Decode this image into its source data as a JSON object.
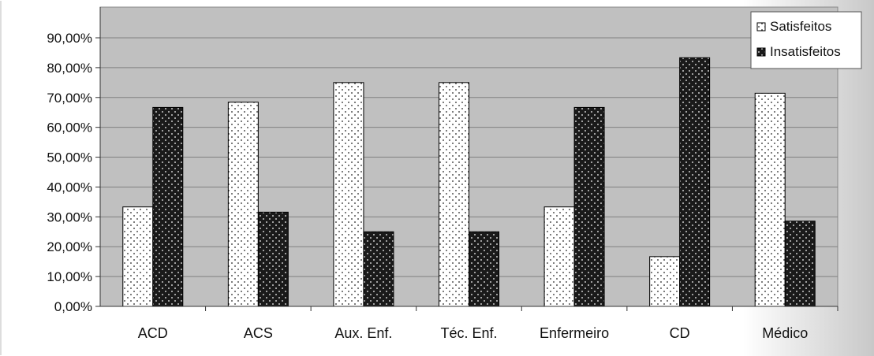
{
  "chart_data": {
    "type": "bar",
    "title": "",
    "xlabel": "",
    "ylabel": "",
    "categories": [
      "ACD",
      "ACS",
      "Aux. Enf.",
      "Téc. Enf.",
      "Enfermeiro",
      "CD",
      "Médico"
    ],
    "series": [
      {
        "name": "Satisfeitos",
        "values": [
          33.33,
          68.42,
          75.0,
          75.0,
          33.33,
          16.67,
          71.43
        ]
      },
      {
        "name": "Insatisfeitos",
        "values": [
          66.67,
          31.58,
          25.0,
          25.0,
          66.67,
          83.33,
          28.57
        ]
      }
    ],
    "ylim": [
      0,
      90
    ],
    "yticks": [
      "0,00%",
      "10,00%",
      "20,00%",
      "30,00%",
      "40,00%",
      "50,00%",
      "60,00%",
      "70,00%",
      "80,00%",
      "90,00%"
    ],
    "grid": true,
    "legend_position": "top-right",
    "colors": {
      "satisfeitos": "#ffffff",
      "insatisfeitos": "#1a1a1a",
      "plot_background": "#c0c0c0",
      "gridline": "#808080"
    }
  }
}
